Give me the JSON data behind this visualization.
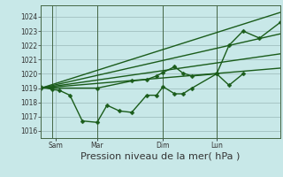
{
  "background_color": "#c8e8e8",
  "grid_color": "#9ab8b8",
  "line_color": "#1a5c1a",
  "xlabel": "Pression niveau de la mer( hPa )",
  "ylim": [
    1015.5,
    1024.8
  ],
  "yticks": [
    1016,
    1017,
    1018,
    1019,
    1020,
    1021,
    1022,
    1023,
    1024
  ],
  "x_tick_labels": [
    "Sam",
    "Mar",
    "Dim",
    "Lun"
  ],
  "x_tick_positions": [
    18,
    68,
    148,
    213
  ],
  "xlim": [
    0,
    290
  ],
  "series": [
    {
      "x": [
        0,
        14,
        22,
        35,
        50,
        68,
        80,
        95,
        110,
        128,
        140,
        148,
        162,
        172,
        183,
        213,
        228,
        245
      ],
      "y": [
        1019.1,
        1018.9,
        1018.85,
        1018.5,
        1016.7,
        1016.6,
        1017.8,
        1017.4,
        1017.3,
        1018.5,
        1018.5,
        1019.1,
        1018.6,
        1018.6,
        1019.0,
        1020.0,
        1019.2,
        1020.0
      ],
      "has_marker": true,
      "markersize": 2.5,
      "linewidth": 1.0
    },
    {
      "x": [
        0,
        290
      ],
      "y": [
        1019.0,
        1024.3
      ],
      "has_marker": false,
      "markersize": 0,
      "linewidth": 1.0
    },
    {
      "x": [
        0,
        290
      ],
      "y": [
        1019.0,
        1022.8
      ],
      "has_marker": false,
      "markersize": 0,
      "linewidth": 1.0
    },
    {
      "x": [
        0,
        290
      ],
      "y": [
        1019.0,
        1021.4
      ],
      "has_marker": false,
      "markersize": 0,
      "linewidth": 1.0
    },
    {
      "x": [
        0,
        290
      ],
      "y": [
        1019.0,
        1020.4
      ],
      "has_marker": false,
      "markersize": 0,
      "linewidth": 1.0
    },
    {
      "x": [
        0,
        68,
        110,
        128,
        140,
        148,
        162,
        172,
        183,
        213,
        228,
        245,
        265,
        290
      ],
      "y": [
        1019.0,
        1019.0,
        1019.5,
        1019.6,
        1019.85,
        1020.1,
        1020.5,
        1020.05,
        1019.85,
        1020.0,
        1022.0,
        1023.0,
        1022.5,
        1023.6
      ],
      "has_marker": true,
      "markersize": 2.5,
      "linewidth": 1.0
    }
  ],
  "vlines_x": [
    14,
    68,
    148,
    213
  ],
  "vline_color": "#446644",
  "vline_linewidth": 0.7,
  "tick_fontsize": 5.5,
  "xlabel_fontsize": 8
}
